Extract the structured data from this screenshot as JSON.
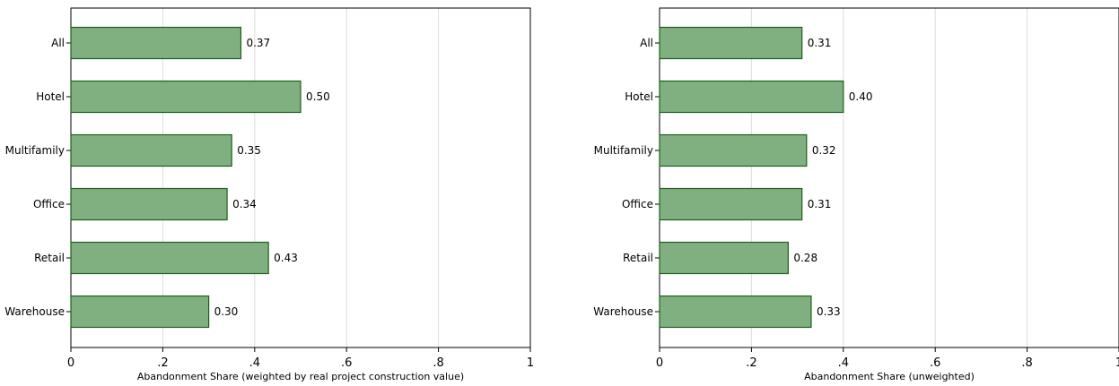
{
  "chart_data": [
    {
      "type": "bar",
      "orientation": "horizontal",
      "categories": [
        "All",
        "Hotel",
        "Multifamily",
        "Office",
        "Retail",
        "Warehouse"
      ],
      "values": [
        0.37,
        0.5,
        0.35,
        0.34,
        0.43,
        0.3
      ],
      "data_labels": [
        "0.37",
        "0.50",
        "0.35",
        "0.34",
        "0.43",
        "0.30"
      ],
      "xlabel": "Abandonment Share (weighted by real project construction value)",
      "xlim": [
        0,
        1
      ],
      "xticks": [
        0,
        0.2,
        0.4,
        0.6,
        0.8,
        1
      ],
      "xtick_labels": [
        "0",
        ".2",
        ".4",
        ".6",
        ".8",
        "1"
      ],
      "grid": "vertical",
      "bar_color": "#80b080",
      "bar_edge_color": "#1e5f1e"
    },
    {
      "type": "bar",
      "orientation": "horizontal",
      "categories": [
        "All",
        "Hotel",
        "Multifamily",
        "Office",
        "Retail",
        "Warehouse"
      ],
      "values": [
        0.31,
        0.4,
        0.32,
        0.31,
        0.28,
        0.33
      ],
      "data_labels": [
        "0.31",
        "0.40",
        "0.32",
        "0.31",
        "0.28",
        "0.33"
      ],
      "xlabel": "Abandonment Share (unweighted)",
      "xlim": [
        0,
        1
      ],
      "xticks": [
        0,
        0.2,
        0.4,
        0.6,
        0.8,
        1
      ],
      "xtick_labels": [
        "0",
        ".2",
        ".4",
        ".6",
        ".8",
        "1"
      ],
      "grid": "vertical",
      "bar_color": "#80b080",
      "bar_edge_color": "#1e5f1e"
    }
  ]
}
